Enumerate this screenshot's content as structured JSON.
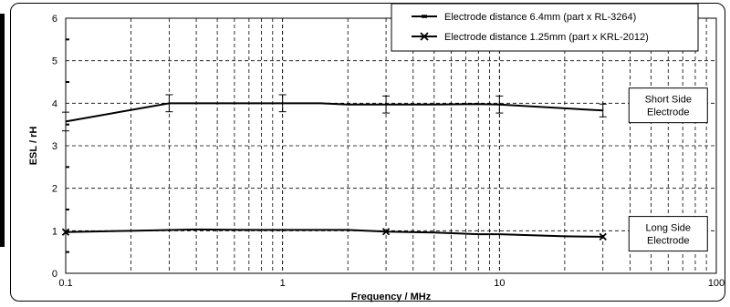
{
  "chart_data": {
    "type": "line",
    "xlabel": "Frequency / MHz",
    "ylabel": "ESL / rH",
    "xscale": "log",
    "xlim": [
      0.1,
      100
    ],
    "ylim": [
      0,
      6
    ],
    "grid": true,
    "x_ticks": [
      "0.1",
      "1",
      "10",
      "100"
    ],
    "y_ticks": [
      "0",
      "1",
      "2",
      "3",
      "4",
      "5",
      "6"
    ],
    "legend_position": "top-right",
    "series": [
      {
        "name": "Electrode distance 6.4mm (part x RL-3264)",
        "marker": "dash",
        "x": [
          0.1,
          0.3,
          0.5,
          1,
          1.5,
          2,
          3,
          5,
          8,
          10,
          20,
          30
        ],
        "y": [
          3.57,
          4.0,
          4.0,
          4.0,
          4.0,
          3.97,
          3.97,
          3.97,
          3.98,
          3.97,
          3.88,
          3.83
        ],
        "error_x": [
          0.1,
          0.3,
          1,
          3,
          10,
          30
        ],
        "error_y": [
          0.22,
          0.2,
          0.2,
          0.2,
          0.2,
          0.15
        ]
      },
      {
        "name": "Electrode distance 1.25mm (part x KRL-2012)",
        "marker": "x",
        "x": [
          0.1,
          0.2,
          0.4,
          0.7,
          1,
          2,
          3,
          5,
          8,
          10,
          20,
          30
        ],
        "y": [
          0.97,
          1.0,
          1.03,
          1.02,
          1.02,
          1.02,
          0.98,
          0.96,
          0.92,
          0.92,
          0.87,
          0.86
        ],
        "marker_x": [
          0.1,
          3,
          30
        ]
      }
    ],
    "annotations": [
      {
        "lines": [
          "Short Side",
          "Electrode"
        ],
        "x": 60,
        "y": 3.95
      },
      {
        "lines": [
          "Long Side",
          "Electrode"
        ],
        "x": 60,
        "y": 0.93
      }
    ]
  }
}
